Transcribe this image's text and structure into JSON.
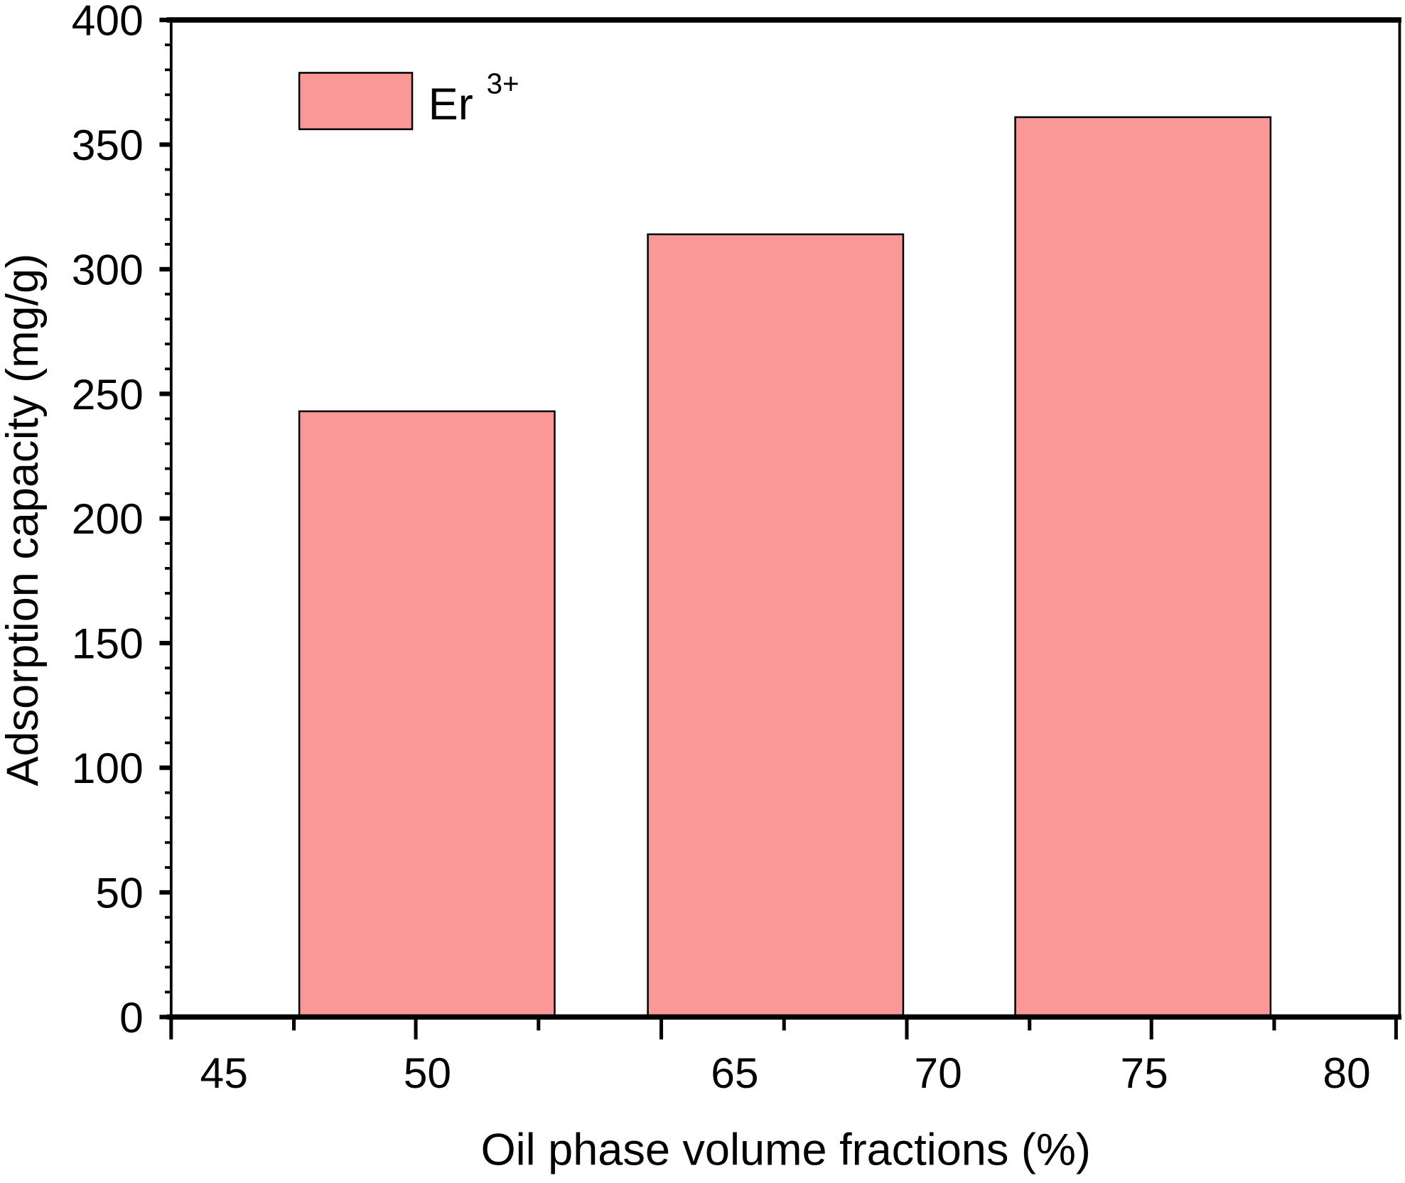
{
  "chart_data": {
    "type": "bar",
    "title": "",
    "xlabel": "Oil phase volume fractions (%)",
    "ylabel": "Adsorption capacity (mg/g)",
    "categories": [
      "50",
      "65",
      "75"
    ],
    "series": [
      {
        "name": "Er",
        "name_superscript": "3+",
        "values": [
          243,
          314,
          361
        ],
        "color": "#FA9898"
      }
    ],
    "x_tick_labels": [
      "45",
      "50",
      "65",
      "70",
      "75",
      "80"
    ],
    "y_ticks": [
      "0",
      "50",
      "100",
      "150",
      "200",
      "250",
      "300",
      "350",
      "400"
    ],
    "ylim": [
      0,
      400
    ],
    "grid": false,
    "legend_position": "top-left"
  }
}
